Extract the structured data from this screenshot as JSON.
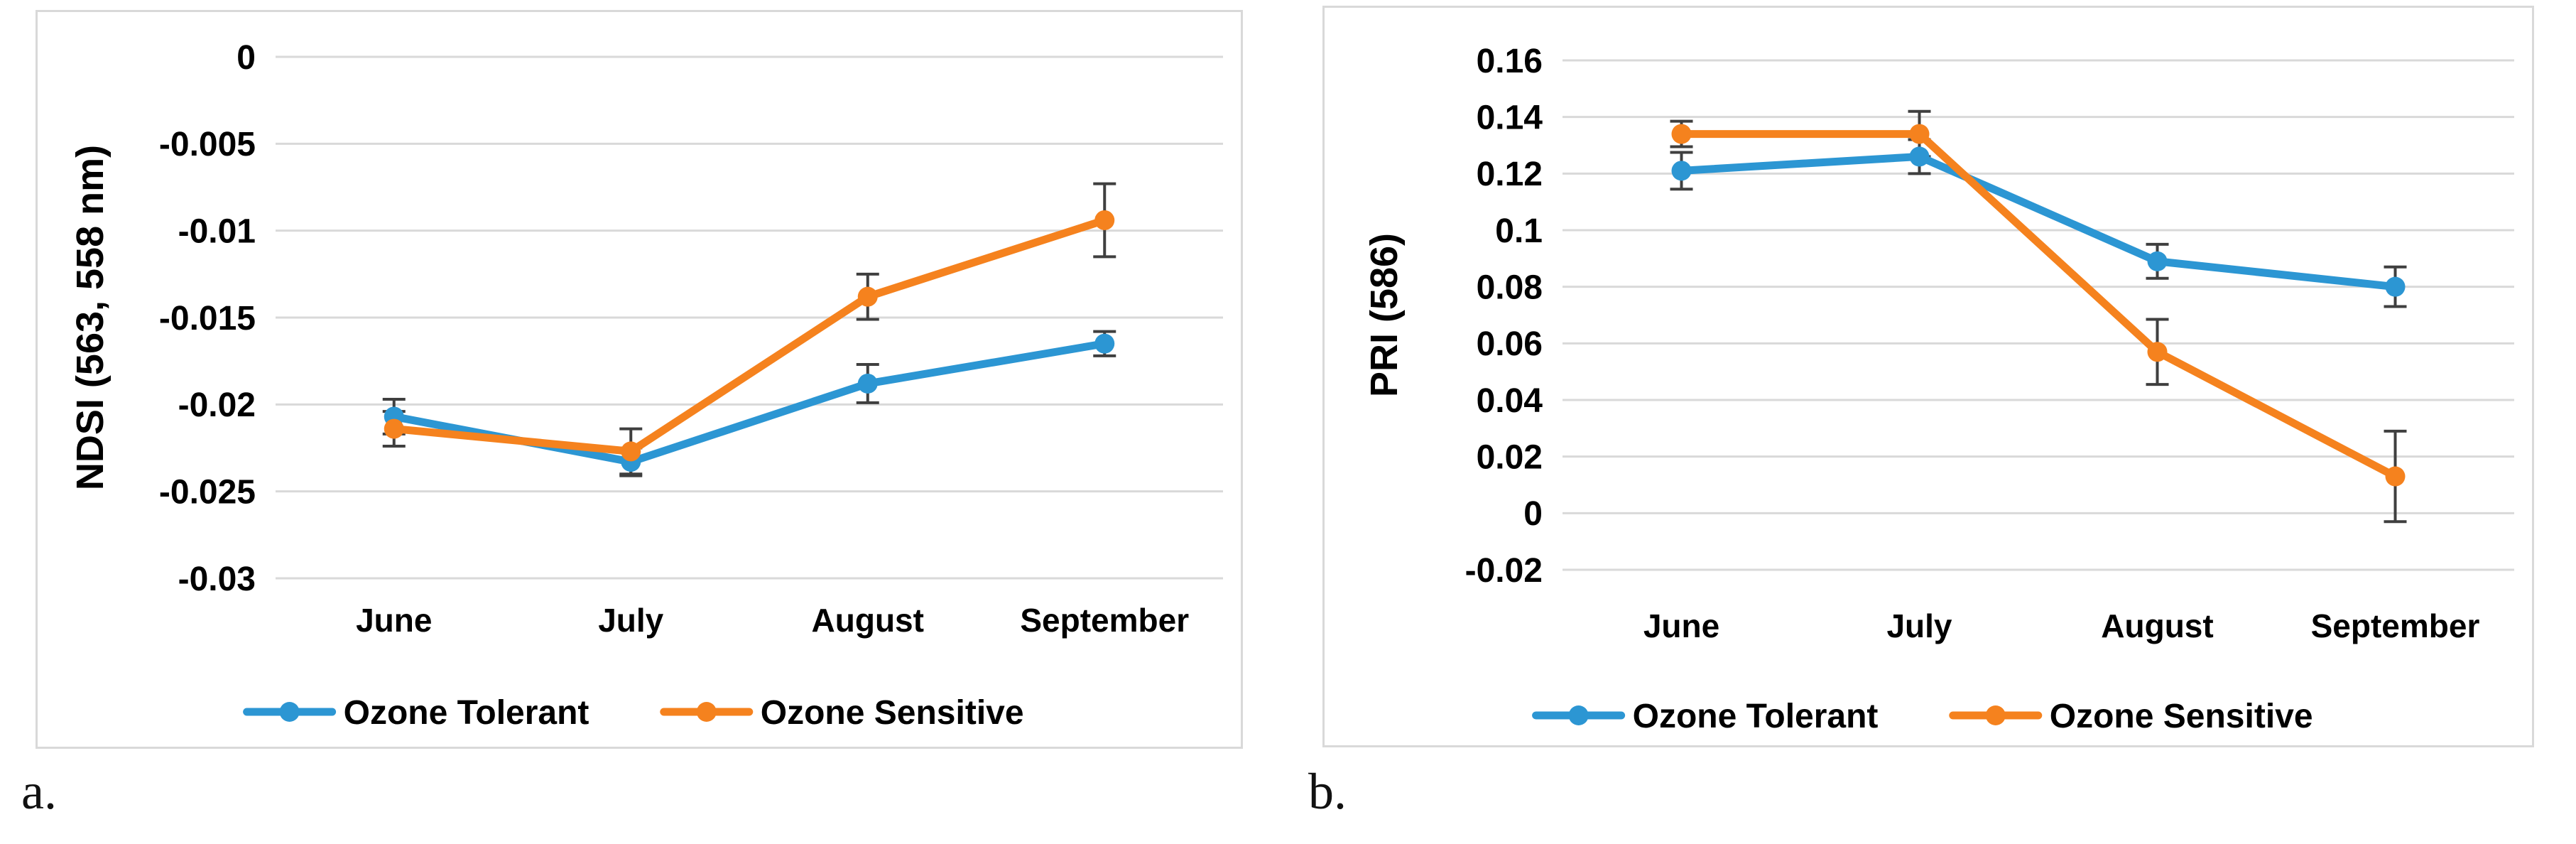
{
  "page": {
    "background": "#ffffff",
    "panels": [
      {
        "caption": "a."
      },
      {
        "caption": "b."
      }
    ]
  },
  "colors": {
    "tolerant_blue": "#2C96D3",
    "sensitive_orange": "#F5821E",
    "gridline": "#D9D9D9",
    "error_bar": "#3F3F3F",
    "panel_border": "#D9D9D9",
    "text": "#000000"
  },
  "chart_data": [
    {
      "id": "chart-a",
      "type": "line",
      "title": "",
      "xlabel": "",
      "ylabel": "NDSI (563, 558 nm)",
      "categories": [
        "June",
        "July",
        "August",
        "September"
      ],
      "ylim": [
        -0.03,
        0
      ],
      "grid": true,
      "legend_position": "bottom",
      "yticks": [
        {
          "v": 0,
          "label": "0"
        },
        {
          "v": -0.005,
          "label": "-0.005"
        },
        {
          "v": -0.01,
          "label": "-0.01"
        },
        {
          "v": -0.015,
          "label": "-0.015"
        },
        {
          "v": -0.02,
          "label": "-0.02"
        },
        {
          "v": -0.025,
          "label": "-0.025"
        },
        {
          "v": -0.03,
          "label": "-0.03"
        }
      ],
      "series": [
        {
          "name": "Ozone Tolerant",
          "color": "#2C96D3",
          "values": [
            -0.0207,
            -0.0233,
            -0.0188,
            -0.0165
          ],
          "errors": [
            0.001,
            0.0008,
            0.0011,
            0.0007
          ]
        },
        {
          "name": "Ozone Sensitive",
          "color": "#F5821E",
          "values": [
            -0.0214,
            -0.0227,
            -0.0138,
            -0.0094
          ],
          "errors": [
            0.001,
            0.0013,
            0.0013,
            0.0021
          ]
        }
      ]
    },
    {
      "id": "chart-b",
      "type": "line",
      "title": "",
      "xlabel": "",
      "ylabel": "PRI (586)",
      "categories": [
        "June",
        "July",
        "August",
        "September"
      ],
      "ylim": [
        -0.02,
        0.16
      ],
      "grid": true,
      "legend_position": "bottom",
      "yticks": [
        {
          "v": 0.16,
          "label": "0.16"
        },
        {
          "v": 0.14,
          "label": "0.14"
        },
        {
          "v": 0.12,
          "label": "0.12"
        },
        {
          "v": 0.1,
          "label": "0.1"
        },
        {
          "v": 0.08,
          "label": "0.08"
        },
        {
          "v": 0.06,
          "label": "0.06"
        },
        {
          "v": 0.04,
          "label": "0.04"
        },
        {
          "v": 0.02,
          "label": "0.02"
        },
        {
          "v": 0,
          "label": "0"
        },
        {
          "v": -0.02,
          "label": "-0.02"
        }
      ],
      "series": [
        {
          "name": "Ozone Tolerant",
          "color": "#2C96D3",
          "values": [
            0.121,
            0.126,
            0.089,
            0.08
          ],
          "errors": [
            0.0065,
            0.006,
            0.006,
            0.007
          ]
        },
        {
          "name": "Ozone Sensitive",
          "color": "#F5821E",
          "values": [
            0.134,
            0.134,
            0.057,
            0.013
          ],
          "errors": [
            0.0045,
            0.008,
            0.0115,
            0.016
          ]
        }
      ]
    }
  ]
}
